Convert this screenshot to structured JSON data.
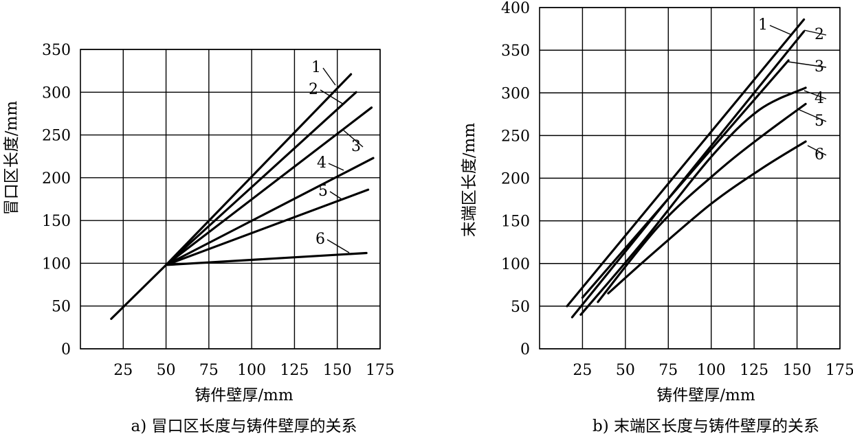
{
  "chart_data": [
    {
      "type": "line",
      "id": "a",
      "title": "a) 冒口区长度与铸件壁厚的关系",
      "xlabel": "铸件壁厚/mm",
      "ylabel": "冒口区长度/mm",
      "xlim": [
        0,
        175
      ],
      "ylim": [
        0,
        350
      ],
      "xticks": [
        25,
        50,
        75,
        100,
        125,
        150,
        175
      ],
      "xtick_labels": [
        "25",
        "50",
        "75",
        "100",
        "125",
        "150",
        "175"
      ],
      "yticks": [
        0,
        50,
        100,
        150,
        200,
        250,
        300,
        350
      ],
      "ytick_labels": [
        "0",
        "50",
        "100",
        "150",
        "200",
        "250",
        "300",
        "350"
      ],
      "series": [
        {
          "name": "1",
          "points": [
            [
              18,
              35
            ],
            [
              50,
              98
            ],
            [
              158,
              321
            ]
          ]
        },
        {
          "name": "2",
          "points": [
            [
              50,
              98
            ],
            [
              161,
              300
            ]
          ]
        },
        {
          "name": "3",
          "points": [
            [
              50,
              98
            ],
            [
              170,
              282
            ]
          ]
        },
        {
          "name": "4",
          "points": [
            [
              50,
              98
            ],
            [
              171,
              223
            ]
          ]
        },
        {
          "name": "5",
          "points": [
            [
              50,
              98
            ],
            [
              168,
              186
            ]
          ]
        },
        {
          "name": "6",
          "points": [
            [
              50,
              98
            ],
            [
              167,
              112
            ]
          ]
        }
      ]
    },
    {
      "type": "line",
      "id": "b",
      "title": "b) 末端区长度与铸件壁厚的关系",
      "xlabel": "铸件壁厚/mm",
      "ylabel": "末端区长度/mm",
      "xlim": [
        0,
        175
      ],
      "ylim": [
        0,
        400
      ],
      "xticks": [
        25,
        50,
        75,
        100,
        125,
        150,
        175
      ],
      "xtick_labels": [
        "25",
        "50",
        "75",
        "100",
        "125",
        "150",
        "175"
      ],
      "yticks": [
        0,
        50,
        100,
        150,
        200,
        250,
        300,
        350,
        400
      ],
      "ytick_labels": [
        "0",
        "50",
        "100",
        "150",
        "200",
        "250",
        "300",
        "350",
        "400"
      ],
      "series": [
        {
          "name": "1",
          "points": [
            [
              16,
              50
            ],
            [
              154,
              386
            ]
          ]
        },
        {
          "name": "2",
          "points": [
            [
              19,
              37
            ],
            [
              154,
              372
            ]
          ]
        },
        {
          "name": "3",
          "points": [
            [
              25,
              60
            ],
            [
              145,
              338
            ]
          ]
        },
        {
          "name": "4",
          "points": [
            [
              24,
              40
            ],
            [
              60,
              125
            ],
            [
              100,
              225
            ],
            [
              128,
              280
            ],
            [
              155,
              306
            ]
          ]
        },
        {
          "name": "5",
          "points": [
            [
              34,
              55
            ],
            [
              70,
              145
            ],
            [
              105,
              210
            ],
            [
              130,
              250
            ],
            [
              155,
              287
            ]
          ]
        },
        {
          "name": "6",
          "points": [
            [
              40,
              65
            ],
            [
              65,
              110
            ],
            [
              100,
              170
            ],
            [
              130,
              212
            ],
            [
              155,
              243
            ]
          ]
        }
      ]
    }
  ]
}
